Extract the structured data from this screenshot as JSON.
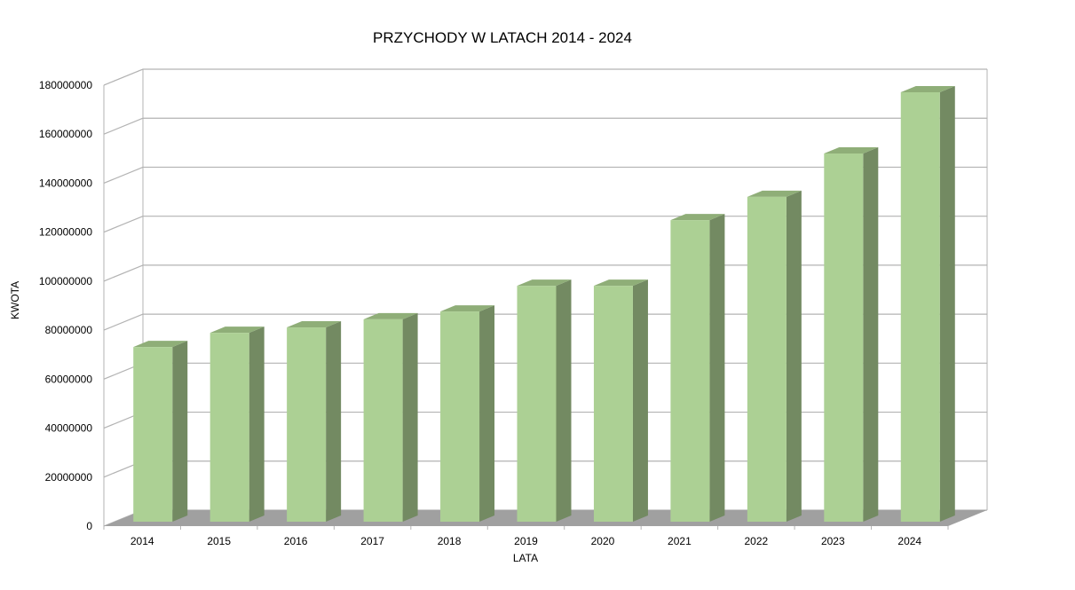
{
  "chart_data": {
    "type": "bar",
    "style": "3d-column",
    "title": "PRZYCHODY W LATACH 2014 - 2024",
    "xlabel": "LATA",
    "ylabel": "KWOTA",
    "categories": [
      "2014",
      "2015",
      "2016",
      "2017",
      "2018",
      "2019",
      "2020",
      "2021",
      "2022",
      "2023",
      "2024"
    ],
    "series": [
      {
        "name": "KWOTA",
        "values": [
          71300000,
          77100000,
          79300000,
          82600000,
          85800000,
          96300000,
          96300000,
          123100000,
          132600000,
          150300000,
          175300000
        ],
        "color_front": "#acd094",
        "color_side": "#738a62",
        "color_top": "#8fae78"
      }
    ],
    "y_ticks": [
      "0",
      "20000000",
      "40000000",
      "60000000",
      "80000000",
      "100000000",
      "120000000",
      "140000000",
      "160000000",
      "180000000"
    ],
    "ylim": [
      0,
      180000000
    ],
    "grid": true,
    "legend": "none",
    "floor_color": "#a0a0a0",
    "grid_color": "#b3b3b3"
  }
}
